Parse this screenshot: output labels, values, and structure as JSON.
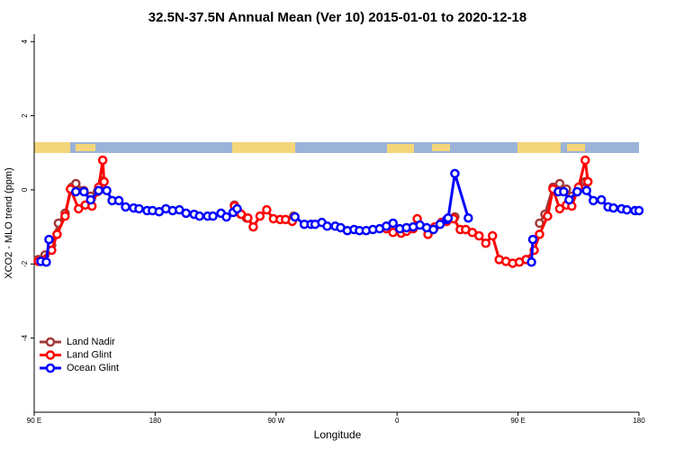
{
  "chart_data": {
    "type": "line",
    "title": "32.5N-37.5N Annual Mean (Ver 10)   2015-01-01 to 2020-12-18",
    "xlabel": "Longitude",
    "ylabel": "XCO2 - MLO trend (ppm)",
    "xlim": [
      90,
      540
    ],
    "ylim": [
      -6,
      4.2
    ],
    "xticks": [
      {
        "value": 90,
        "label": "90 E"
      },
      180,
      {
        "value": 270,
        "label": "90 W"
      },
      {
        "value": 360,
        "label": "0"
      },
      {
        "value": 450,
        "label": "90 E"
      },
      {
        "value": 540,
        "label": "180"
      }
    ],
    "yticks": [
      -4,
      -2,
      0,
      2,
      4
    ],
    "legend": "bottomleft",
    "series": [
      {
        "name": "Land Nadir",
        "color": "#a33a3a",
        "x": [
          93,
          98,
          103,
          108,
          113,
          118,
          121,
          127,
          132,
          137,
          141,
          239,
          243,
          248,
          283,
          403,
          466,
          470,
          476,
          481,
          486,
          490,
          494,
          500
        ],
        "values": [
          -1.88,
          -1.76,
          -1.49,
          -0.9,
          -0.63,
          0.07,
          0.17,
          -0.02,
          -0.17,
          -0.05,
          0.24,
          -0.41,
          -0.63,
          -0.76,
          -0.71,
          -0.73,
          -0.9,
          -0.66,
          0.07,
          0.17,
          0.02,
          -0.17,
          -0.05,
          0.22
        ]
      },
      {
        "name": "Land Glint",
        "color": "#ff0000",
        "x": [
          93,
          103,
          107,
          113,
          117,
          123,
          128,
          133,
          138,
          141,
          142,
          239,
          244,
          249,
          253,
          258,
          263,
          268,
          273,
          277,
          282,
          352,
          357,
          363,
          367,
          372,
          375,
          383,
          388,
          393,
          397,
          402,
          407,
          411,
          416,
          421,
          426,
          431,
          436,
          441,
          446,
          451,
          456,
          462,
          466,
          472,
          476,
          481,
          486,
          490,
          495,
          500,
          502
        ],
        "values": [
          -1.93,
          -1.63,
          -1.2,
          -0.71,
          0.02,
          -0.51,
          -0.41,
          -0.44,
          0.07,
          0.8,
          0.22,
          -0.44,
          -0.66,
          -0.76,
          -1.0,
          -0.71,
          -0.54,
          -0.78,
          -0.8,
          -0.8,
          -0.85,
          -1.05,
          -1.15,
          -1.17,
          -1.12,
          -1.05,
          -0.78,
          -1.2,
          -1.0,
          -0.88,
          -0.85,
          -0.78,
          -1.07,
          -1.07,
          -1.15,
          -1.24,
          -1.44,
          -1.24,
          -1.88,
          -1.93,
          -1.98,
          -1.95,
          -1.88,
          -1.63,
          -1.2,
          -0.71,
          0.02,
          -0.51,
          -0.41,
          -0.44,
          0.07,
          0.8,
          0.22
        ]
      },
      {
        "name": "Ocean Glint",
        "color": "#0000ff",
        "x": [
          95,
          99,
          101,
          121,
          127,
          132,
          138,
          144,
          148,
          153,
          158,
          164,
          168,
          174,
          178,
          183,
          188,
          193,
          198,
          203,
          209,
          213,
          219,
          223,
          229,
          233,
          238,
          241,
          284,
          291,
          296,
          299,
          304,
          308,
          314,
          318,
          323,
          328,
          332,
          337,
          342,
          347,
          352,
          357,
          362,
          367,
          372,
          377,
          382,
          387,
          392,
          397,
          398,
          403,
          413,
          460,
          461,
          480,
          484,
          488,
          494,
          501,
          506,
          512,
          517,
          521,
          527,
          531,
          537,
          540
        ],
        "values": [
          -1.93,
          -1.95,
          -1.34,
          -0.05,
          -0.05,
          -0.27,
          -0.02,
          -0.02,
          -0.29,
          -0.29,
          -0.46,
          -0.49,
          -0.51,
          -0.56,
          -0.56,
          -0.59,
          -0.51,
          -0.56,
          -0.54,
          -0.63,
          -0.66,
          -0.71,
          -0.71,
          -0.71,
          -0.63,
          -0.73,
          -0.61,
          -0.51,
          -0.73,
          -0.93,
          -0.93,
          -0.93,
          -0.88,
          -0.98,
          -0.98,
          -1.02,
          -1.1,
          -1.07,
          -1.1,
          -1.1,
          -1.07,
          -1.05,
          -0.98,
          -0.9,
          -1.05,
          -1.02,
          -1.0,
          -0.95,
          -1.02,
          -1.07,
          -0.93,
          -0.8,
          -0.76,
          0.44,
          -0.76,
          -1.95,
          -1.34,
          -0.05,
          -0.05,
          -0.27,
          -0.05,
          -0.02,
          -0.29,
          -0.27,
          -0.46,
          -0.49,
          -0.51,
          -0.54,
          -0.56,
          -0.56
        ]
      }
    ]
  }
}
